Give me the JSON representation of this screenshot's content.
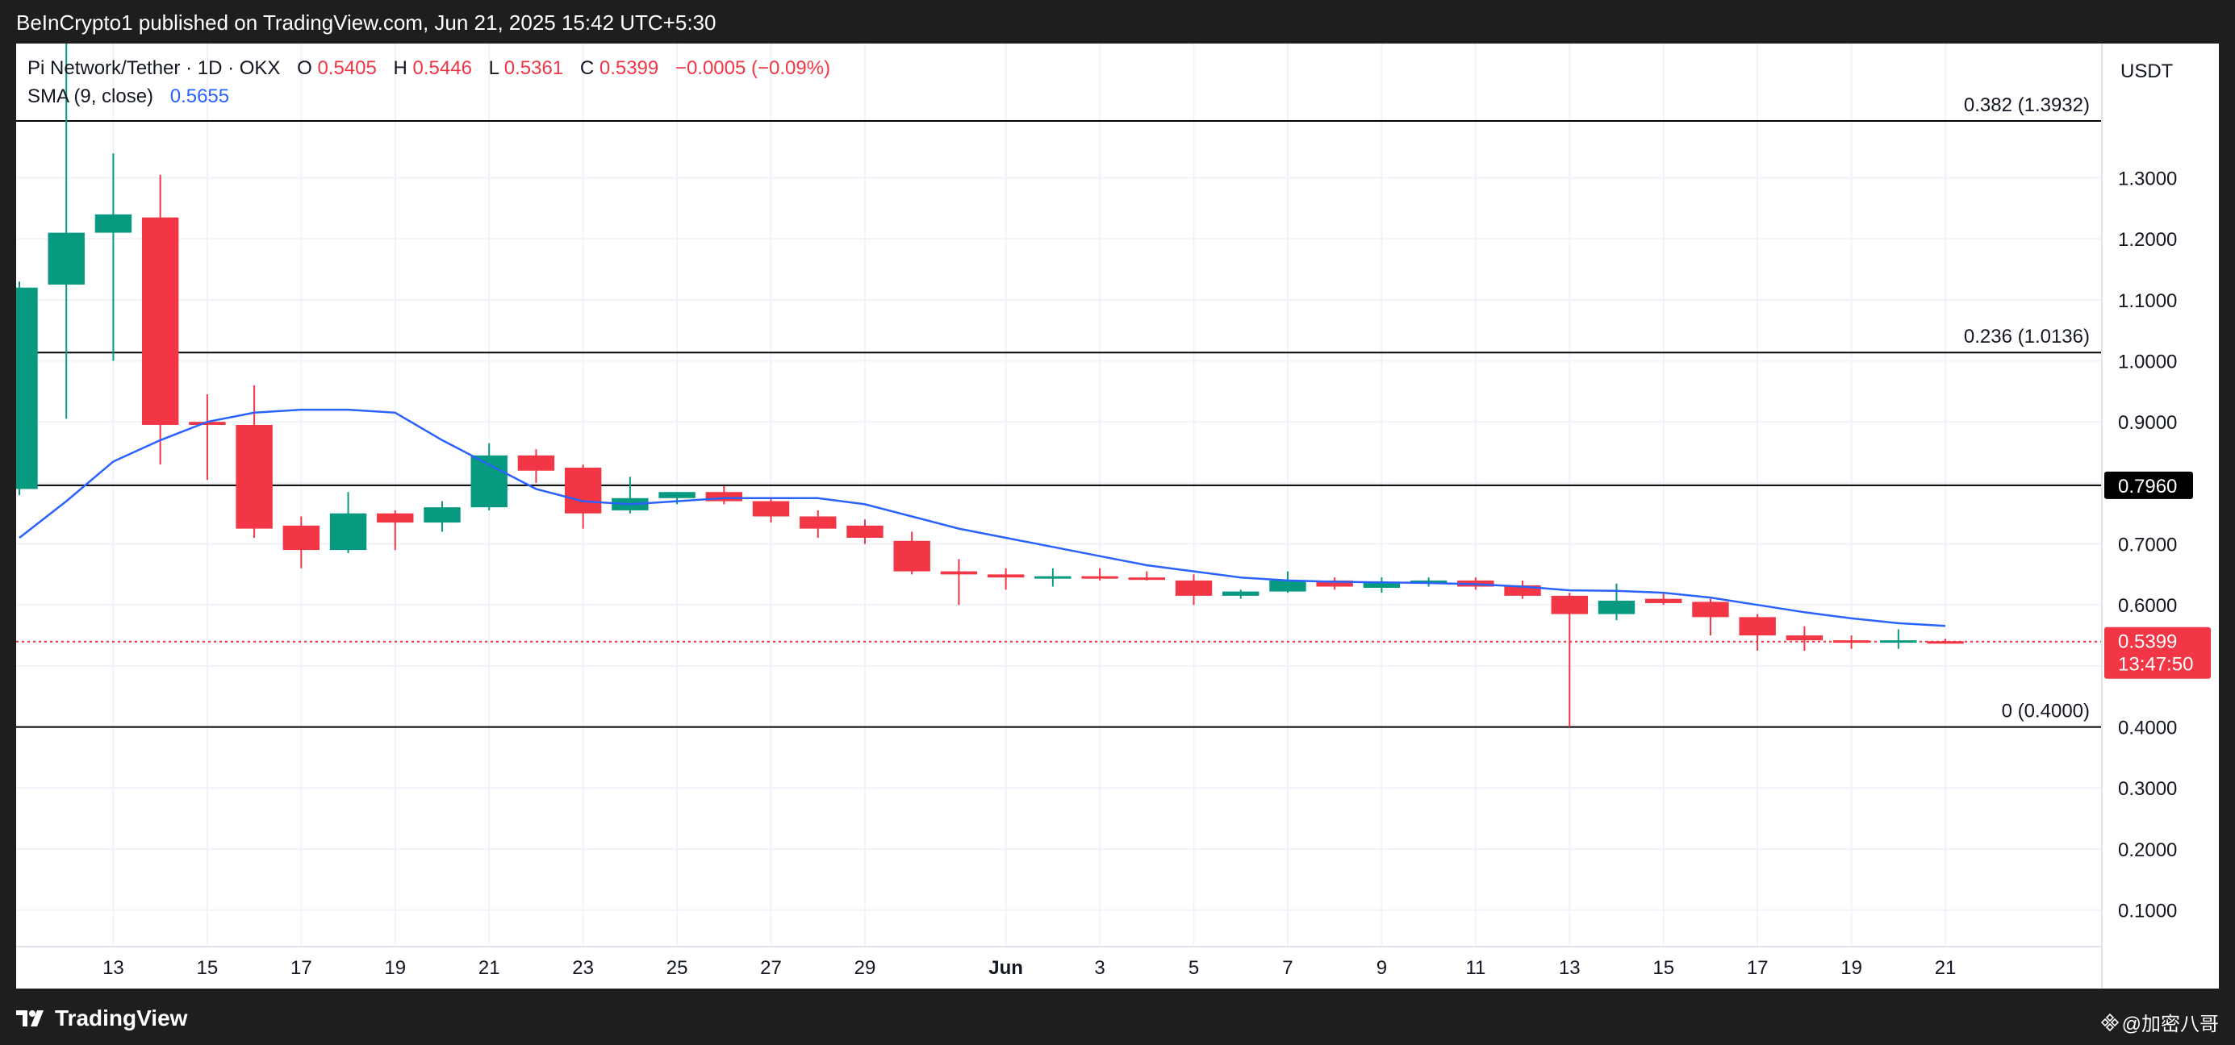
{
  "header": {
    "published_text": "BeInCrypto1 published on TradingView.com, Jun 21, 2025 15:42 UTC+5:30"
  },
  "legend": {
    "symbol": "Pi Network/Tether · 1D · OKX",
    "o_label": "O",
    "o_value": "0.5405",
    "h_label": "H",
    "h_value": "0.5446",
    "l_label": "L",
    "l_value": "0.5361",
    "c_label": "C",
    "c_value": "0.5399",
    "change": "−0.0005 (−0.09%)",
    "sma_label": "SMA (9, close)",
    "sma_value": "0.5655"
  },
  "price_axis": {
    "currency": "USDT",
    "current_price": "0.5399",
    "countdown": "13:47:50",
    "level_tag": "0.7960"
  },
  "fib_levels": [
    {
      "label": "0.382 (1.3932)",
      "value": 1.3932
    },
    {
      "label": "0.236 (1.0136)",
      "value": 1.0136
    },
    {
      "label": "0 (0.4000)",
      "value": 0.4
    }
  ],
  "horizontal_line": 0.796,
  "footer": {
    "brand": "TradingView",
    "watermark": "@加密八哥"
  },
  "colors": {
    "up": "#089981",
    "down": "#f23645",
    "sma": "#2962ff",
    "price_tag": "#f23645",
    "level_tag_bg": "#000000"
  },
  "chart_data": {
    "type": "candlestick",
    "y_scale": "linear",
    "ylim": [
      0.04,
      1.52
    ],
    "y_ticks": [
      0.1,
      0.2,
      0.3,
      0.4,
      0.5,
      0.6,
      0.7,
      0.8,
      0.9,
      1.0,
      1.1,
      1.2,
      1.3
    ],
    "x_ticks": [
      {
        "day": 13,
        "label": "13"
      },
      {
        "day": 15,
        "label": "15"
      },
      {
        "day": 17,
        "label": "17"
      },
      {
        "day": 19,
        "label": "19"
      },
      {
        "day": 21,
        "label": "21"
      },
      {
        "day": 23,
        "label": "23"
      },
      {
        "day": 25,
        "label": "25"
      },
      {
        "day": 27,
        "label": "27"
      },
      {
        "day": 29,
        "label": "29"
      },
      {
        "day": 32,
        "label": "Jun"
      },
      {
        "day": 34,
        "label": "3"
      },
      {
        "day": 36,
        "label": "5"
      },
      {
        "day": 38,
        "label": "7"
      },
      {
        "day": 40,
        "label": "9"
      },
      {
        "day": 42,
        "label": "11"
      },
      {
        "day": 44,
        "label": "13"
      },
      {
        "day": 46,
        "label": "15"
      },
      {
        "day": 48,
        "label": "17"
      },
      {
        "day": 50,
        "label": "19"
      },
      {
        "day": 52,
        "label": "21"
      }
    ],
    "x_range": [
      11.0,
      55.4
    ],
    "candles": [
      {
        "d": 11,
        "o": 0.79,
        "h": 1.13,
        "l": 0.78,
        "c": 1.12
      },
      {
        "d": 12,
        "o": 1.125,
        "h": 1.52,
        "l": 0.905,
        "c": 1.21
      },
      {
        "d": 13,
        "o": 1.21,
        "h": 1.34,
        "l": 1.0,
        "c": 1.24
      },
      {
        "d": 14,
        "o": 1.235,
        "h": 1.305,
        "l": 0.83,
        "c": 0.895
      },
      {
        "d": 15,
        "o": 0.9,
        "h": 0.945,
        "l": 0.805,
        "c": 0.895
      },
      {
        "d": 16,
        "o": 0.895,
        "h": 0.96,
        "l": 0.71,
        "c": 0.725
      },
      {
        "d": 17,
        "o": 0.73,
        "h": 0.745,
        "l": 0.66,
        "c": 0.69
      },
      {
        "d": 18,
        "o": 0.69,
        "h": 0.785,
        "l": 0.685,
        "c": 0.75
      },
      {
        "d": 19,
        "o": 0.75,
        "h": 0.755,
        "l": 0.69,
        "c": 0.735
      },
      {
        "d": 20,
        "o": 0.735,
        "h": 0.77,
        "l": 0.72,
        "c": 0.76
      },
      {
        "d": 21,
        "o": 0.76,
        "h": 0.865,
        "l": 0.755,
        "c": 0.845
      },
      {
        "d": 22,
        "o": 0.845,
        "h": 0.855,
        "l": 0.8,
        "c": 0.82
      },
      {
        "d": 23,
        "o": 0.825,
        "h": 0.83,
        "l": 0.725,
        "c": 0.75
      },
      {
        "d": 24,
        "o": 0.755,
        "h": 0.81,
        "l": 0.75,
        "c": 0.775
      },
      {
        "d": 25,
        "o": 0.775,
        "h": 0.785,
        "l": 0.765,
        "c": 0.785
      },
      {
        "d": 26,
        "o": 0.785,
        "h": 0.795,
        "l": 0.765,
        "c": 0.77
      },
      {
        "d": 27,
        "o": 0.77,
        "h": 0.775,
        "l": 0.735,
        "c": 0.745
      },
      {
        "d": 28,
        "o": 0.745,
        "h": 0.755,
        "l": 0.71,
        "c": 0.725
      },
      {
        "d": 29,
        "o": 0.73,
        "h": 0.74,
        "l": 0.7,
        "c": 0.71
      },
      {
        "d": 30,
        "o": 0.705,
        "h": 0.72,
        "l": 0.65,
        "c": 0.655
      },
      {
        "d": 31,
        "o": 0.655,
        "h": 0.675,
        "l": 0.6,
        "c": 0.65
      },
      {
        "d": 32,
        "o": 0.65,
        "h": 0.66,
        "l": 0.625,
        "c": 0.645
      },
      {
        "d": 33,
        "o": 0.645,
        "h": 0.66,
        "l": 0.63,
        "c": 0.647
      },
      {
        "d": 34,
        "o": 0.647,
        "h": 0.66,
        "l": 0.64,
        "c": 0.645
      },
      {
        "d": 35,
        "o": 0.645,
        "h": 0.655,
        "l": 0.64,
        "c": 0.643
      },
      {
        "d": 36,
        "o": 0.64,
        "h": 0.65,
        "l": 0.6,
        "c": 0.615
      },
      {
        "d": 37,
        "o": 0.615,
        "h": 0.625,
        "l": 0.61,
        "c": 0.622
      },
      {
        "d": 38,
        "o": 0.622,
        "h": 0.655,
        "l": 0.62,
        "c": 0.64
      },
      {
        "d": 39,
        "o": 0.64,
        "h": 0.645,
        "l": 0.625,
        "c": 0.63
      },
      {
        "d": 40,
        "o": 0.628,
        "h": 0.645,
        "l": 0.62,
        "c": 0.638
      },
      {
        "d": 41,
        "o": 0.635,
        "h": 0.645,
        "l": 0.63,
        "c": 0.64
      },
      {
        "d": 42,
        "o": 0.64,
        "h": 0.645,
        "l": 0.625,
        "c": 0.63
      },
      {
        "d": 43,
        "o": 0.632,
        "h": 0.64,
        "l": 0.61,
        "c": 0.615
      },
      {
        "d": 44,
        "o": 0.615,
        "h": 0.62,
        "l": 0.4,
        "c": 0.585
      },
      {
        "d": 45,
        "o": 0.585,
        "h": 0.635,
        "l": 0.575,
        "c": 0.607
      },
      {
        "d": 46,
        "o": 0.61,
        "h": 0.62,
        "l": 0.6,
        "c": 0.603
      },
      {
        "d": 47,
        "o": 0.605,
        "h": 0.61,
        "l": 0.55,
        "c": 0.58
      },
      {
        "d": 48,
        "o": 0.58,
        "h": 0.585,
        "l": 0.525,
        "c": 0.55
      },
      {
        "d": 49,
        "o": 0.55,
        "h": 0.565,
        "l": 0.525,
        "c": 0.542
      },
      {
        "d": 50,
        "o": 0.542,
        "h": 0.55,
        "l": 0.528,
        "c": 0.538
      },
      {
        "d": 51,
        "o": 0.538,
        "h": 0.56,
        "l": 0.528,
        "c": 0.542
      },
      {
        "d": 52,
        "o": 0.5405,
        "h": 0.5446,
        "l": 0.5361,
        "c": 0.5399
      }
    ],
    "sma": {
      "name": "SMA (9, close)",
      "points": [
        [
          11,
          0.71
        ],
        [
          12,
          0.77
        ],
        [
          13,
          0.835
        ],
        [
          14,
          0.87
        ],
        [
          15,
          0.9
        ],
        [
          16,
          0.915
        ],
        [
          17,
          0.92
        ],
        [
          18,
          0.92
        ],
        [
          19,
          0.915
        ],
        [
          20,
          0.87
        ],
        [
          21,
          0.83
        ],
        [
          22,
          0.79
        ],
        [
          23,
          0.77
        ],
        [
          24,
          0.765
        ],
        [
          25,
          0.77
        ],
        [
          26,
          0.775
        ],
        [
          27,
          0.775
        ],
        [
          28,
          0.775
        ],
        [
          29,
          0.765
        ],
        [
          30,
          0.745
        ],
        [
          31,
          0.725
        ],
        [
          32,
          0.71
        ],
        [
          33,
          0.695
        ],
        [
          34,
          0.68
        ],
        [
          35,
          0.665
        ],
        [
          36,
          0.655
        ],
        [
          37,
          0.645
        ],
        [
          38,
          0.64
        ],
        [
          39,
          0.638
        ],
        [
          40,
          0.637
        ],
        [
          41,
          0.636
        ],
        [
          42,
          0.634
        ],
        [
          43,
          0.63
        ],
        [
          44,
          0.624
        ],
        [
          45,
          0.623
        ],
        [
          46,
          0.62
        ],
        [
          47,
          0.612
        ],
        [
          48,
          0.6
        ],
        [
          49,
          0.588
        ],
        [
          50,
          0.578
        ],
        [
          51,
          0.57
        ],
        [
          52,
          0.5655
        ]
      ]
    }
  }
}
